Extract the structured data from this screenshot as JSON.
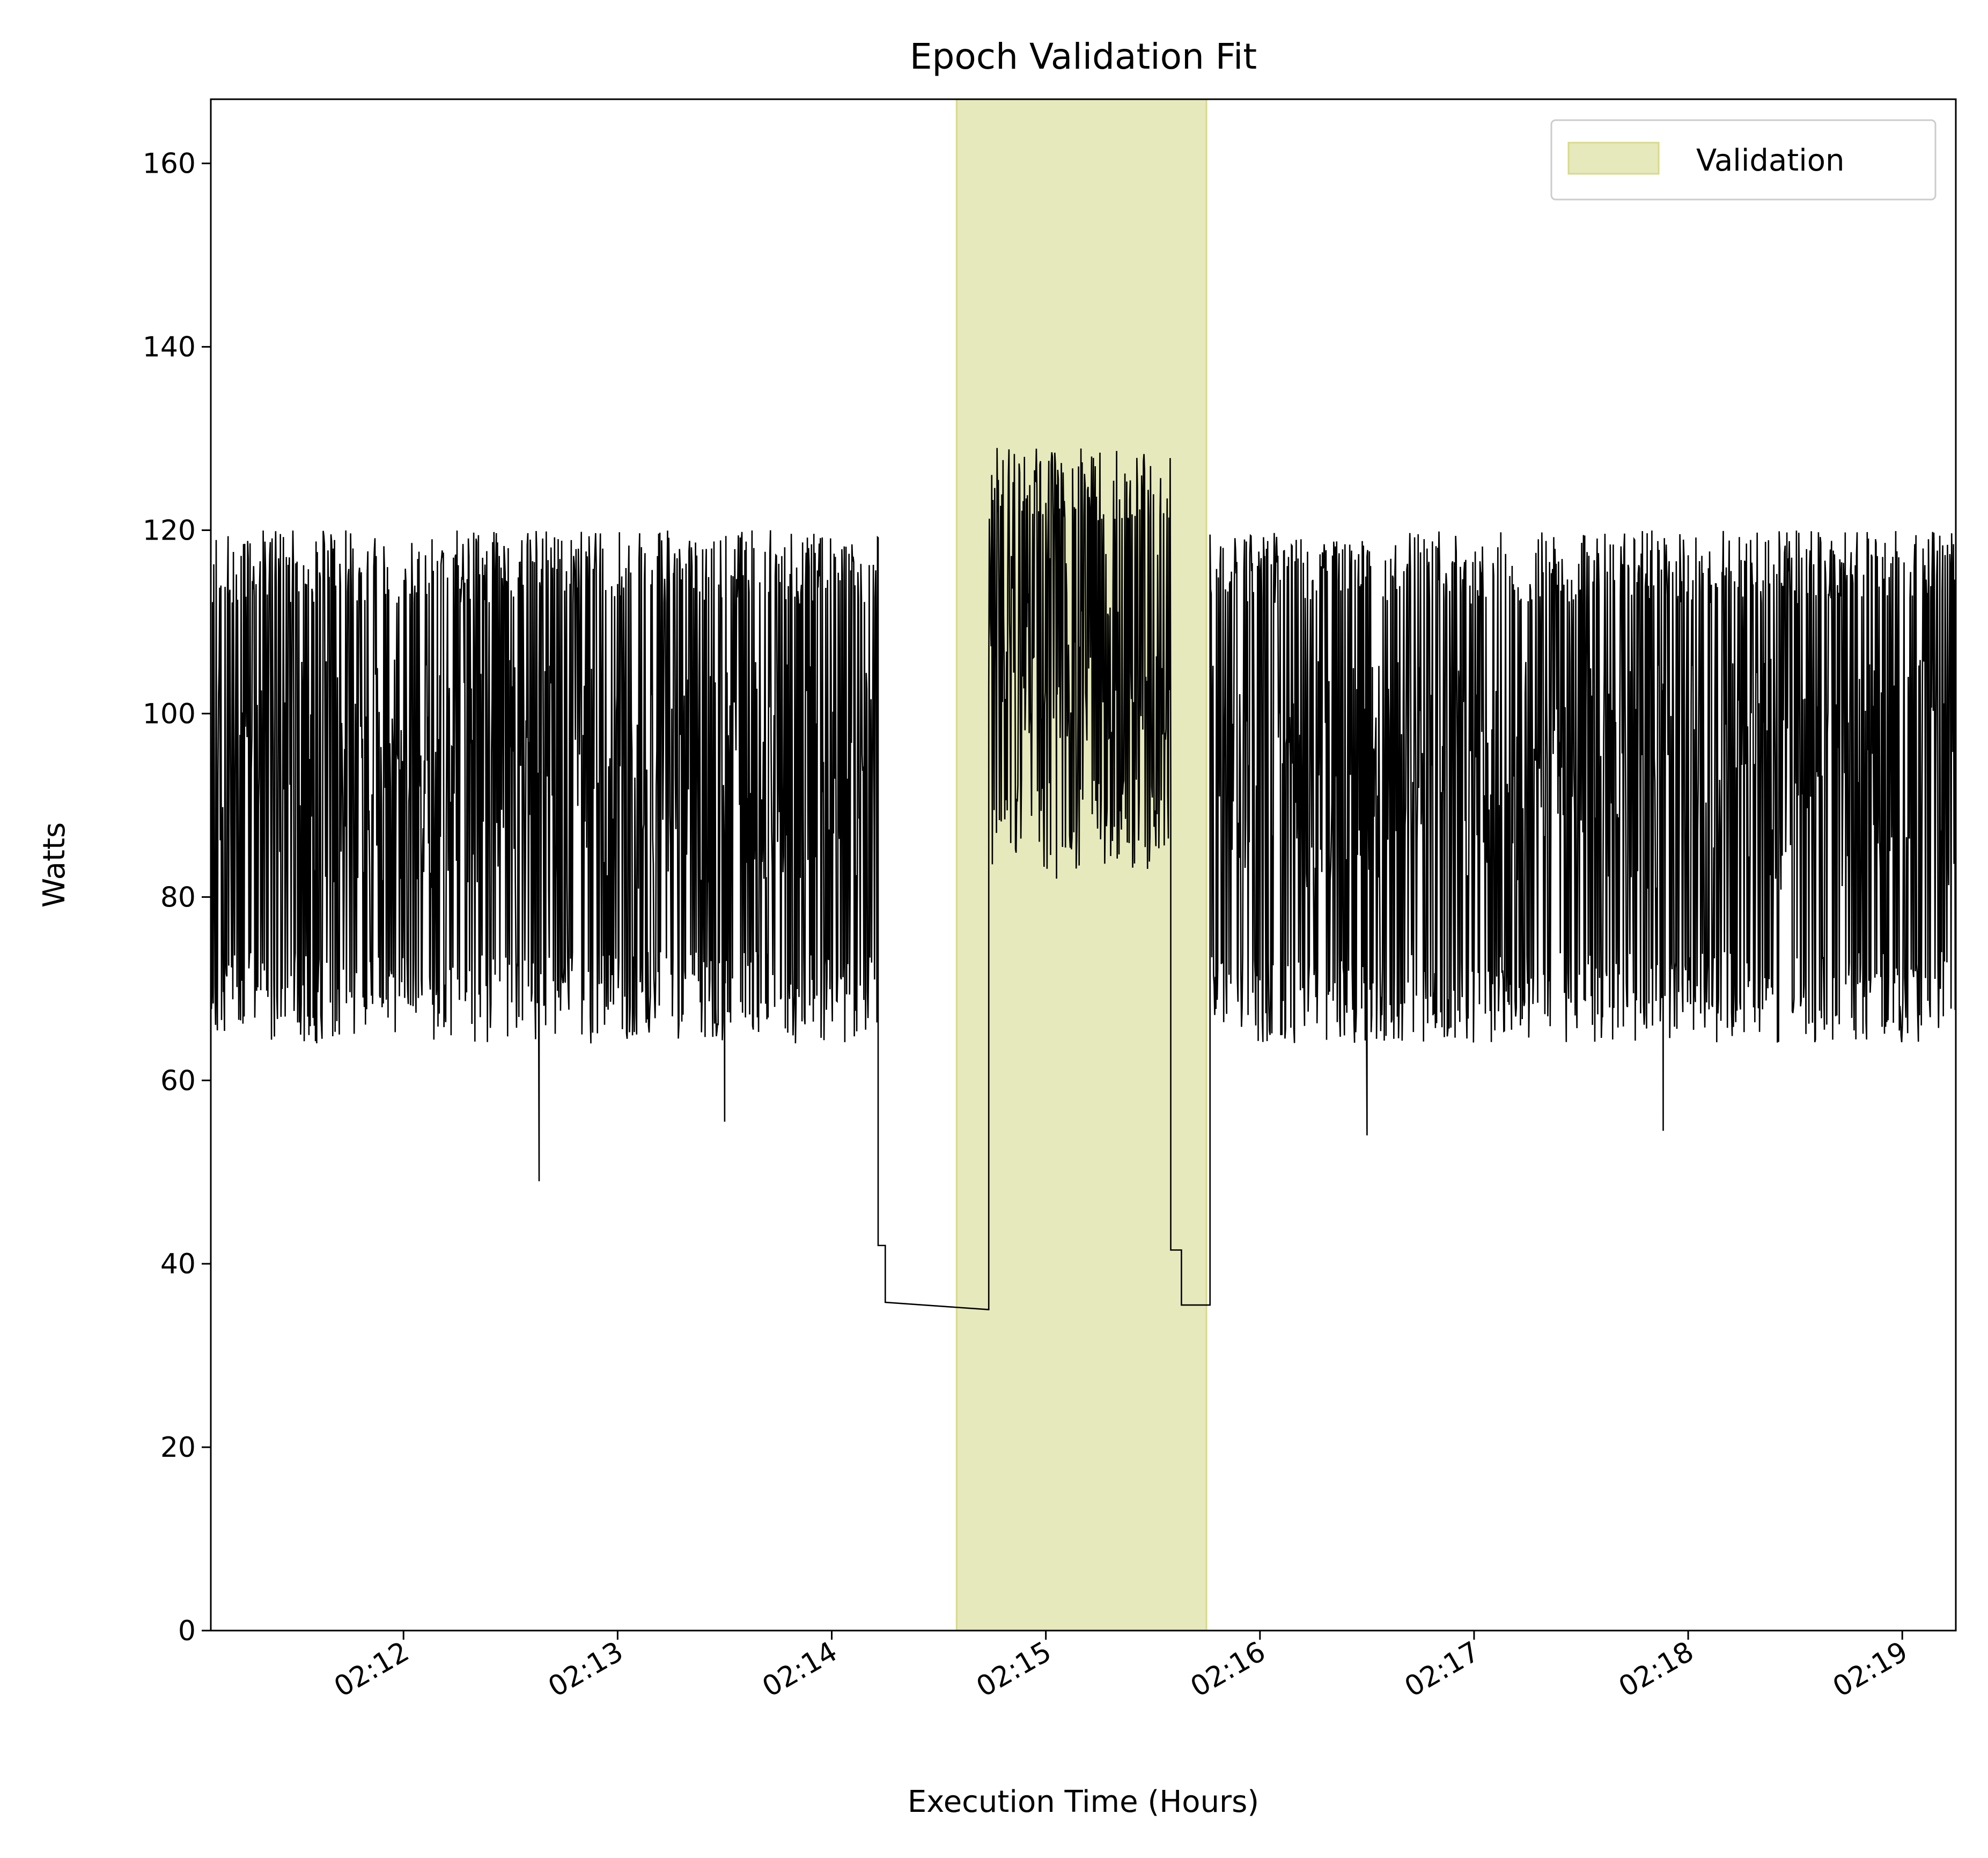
{
  "chart_data": {
    "type": "line",
    "title": "Epoch Validation Fit",
    "xlabel": "Execution Time (Hours)",
    "ylabel": "Watts",
    "xlim": [
      "02:11:06",
      "02:19:15"
    ],
    "ylim": [
      0,
      167
    ],
    "x_tick_labels": [
      "02:12",
      "02:13",
      "02:14",
      "02:15",
      "02:16",
      "02:17",
      "02:18",
      "02:19"
    ],
    "y_tick_labels": [
      "0",
      "20",
      "40",
      "60",
      "80",
      "100",
      "120",
      "140",
      "160"
    ],
    "legend": {
      "position": "top-right",
      "entries": [
        {
          "label": "Validation",
          "color": "#e6e9bb",
          "edge": "#d6da8a"
        }
      ]
    },
    "highlight_region": {
      "label": "Validation",
      "x_start": "02:14:35",
      "x_end": "02:15:45",
      "color": "#e6e9bb"
    },
    "series": [
      {
        "color": "#000000",
        "segments": [
          {
            "x_start": "02:11:06",
            "x_end": "02:14:13",
            "pattern": "fluctuating",
            "low": 64,
            "high": 120,
            "mean": 96
          },
          {
            "x_start": "02:14:13",
            "x_end": "02:14:15",
            "value": 42
          },
          {
            "x_start": "02:14:15",
            "x_end": "02:14:44",
            "value_start": 35.8,
            "value_end": 35.0
          },
          {
            "x_start": "02:14:44",
            "x_end": "02:15:35",
            "pattern": "fluctuating",
            "low": 83,
            "high": 129,
            "mean": 108
          },
          {
            "x_start": "02:15:35",
            "x_end": "02:15:38",
            "value": 41.5
          },
          {
            "x_start": "02:15:38",
            "x_end": "02:15:46",
            "value": 35.5
          },
          {
            "x_start": "02:15:46",
            "x_end": "02:19:15",
            "pattern": "fluctuating",
            "low": 64,
            "high": 120,
            "mean": 96
          }
        ],
        "notable_points": [
          {
            "x": "02:12:38",
            "y": 49
          },
          {
            "x": "02:13:30",
            "y": 55.5
          },
          {
            "x": "02:16:30",
            "y": 54
          },
          {
            "x": "02:17:53",
            "y": 54.5
          },
          {
            "x": "02:15:03",
            "y": 82
          }
        ]
      }
    ]
  }
}
